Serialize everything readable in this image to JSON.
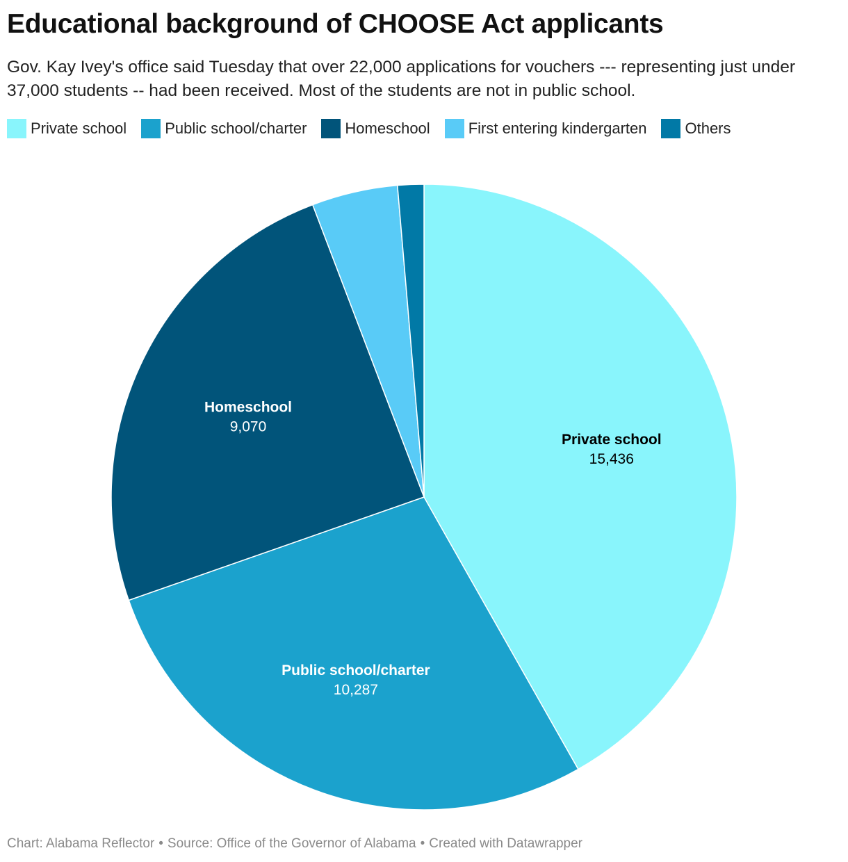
{
  "title": "Educational background of CHOOSE Act applicants",
  "subtitle": "Gov. Kay Ivey's office said Tuesday that over 22,000 applications for vouchers --- representing just under 37,000 students -- had been received. Most of the students are not in public school.",
  "footer": {
    "chart_credit": "Chart: Alabama Reflector",
    "source": "Source: Office of the Governor of Alabama",
    "created_with": "Created with Datawrapper",
    "separator": "•"
  },
  "legend": [
    {
      "label": "Private school",
      "color": "#89f5fc"
    },
    {
      "label": "Public school/charter",
      "color": "#1ba2cd"
    },
    {
      "label": "Homeschool",
      "color": "#01547a"
    },
    {
      "label": "First entering kindergarten",
      "color": "#59cbf7"
    },
    {
      "label": "Others",
      "color": "#0179a6"
    }
  ],
  "chart_data": {
    "type": "pie",
    "title": "Educational background of CHOOSE Act applicants",
    "start_angle": "12 o'clock",
    "direction": "clockwise",
    "legend_position": "top",
    "slices": [
      {
        "label": "Private school",
        "value": 15436,
        "value_label": "15,436",
        "color": "#89f5fc",
        "show_label": true,
        "label_color": "#000000"
      },
      {
        "label": "Public school/charter",
        "value": 10287,
        "value_label": "10,287",
        "color": "#1ba2cd",
        "show_label": true,
        "label_color": "#ffffff"
      },
      {
        "label": "Homeschool",
        "value": 9070,
        "value_label": "9,070",
        "color": "#01547a",
        "show_label": true,
        "label_color": "#ffffff"
      },
      {
        "label": "First entering kindergarten",
        "value": 1640,
        "color": "#59cbf7",
        "show_label": false
      },
      {
        "label": "Others",
        "value": 500,
        "color": "#0179a6",
        "show_label": false
      }
    ]
  }
}
